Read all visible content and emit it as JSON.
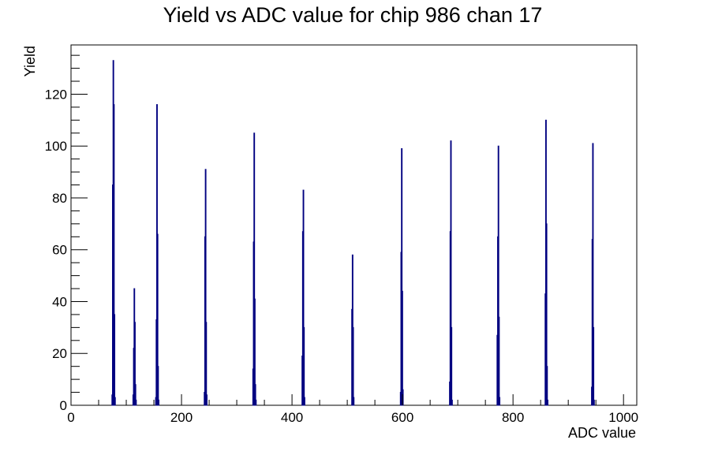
{
  "chart_data": {
    "type": "bar",
    "title": "Yield vs ADC value for chip 986 chan 17",
    "xlabel": "ADC value",
    "ylabel": "Yield",
    "xlim": [
      0,
      1024
    ],
    "ylim": [
      0,
      139
    ],
    "x_ticks": [
      0,
      200,
      400,
      600,
      800,
      1000
    ],
    "y_ticks": [
      0,
      20,
      40,
      60,
      80,
      100,
      120
    ],
    "grid": false,
    "legend": "none",
    "color": "#000080",
    "series": [
      {
        "values": [
          [
            74,
            4
          ],
          [
            75,
            85
          ],
          [
            76,
            133
          ],
          [
            77,
            116
          ],
          [
            78,
            35
          ],
          [
            79,
            3
          ],
          [
            112,
            4
          ],
          [
            113,
            22
          ],
          [
            114,
            45
          ],
          [
            115,
            32
          ],
          [
            116,
            8
          ],
          [
            117,
            2
          ],
          [
            153,
            3
          ],
          [
            154,
            33
          ],
          [
            155,
            116
          ],
          [
            156,
            66
          ],
          [
            157,
            15
          ],
          [
            158,
            2
          ],
          [
            241,
            5
          ],
          [
            242,
            65
          ],
          [
            243,
            91
          ],
          [
            244,
            32
          ],
          [
            245,
            4
          ],
          [
            329,
            14
          ],
          [
            330,
            63
          ],
          [
            331,
            105
          ],
          [
            332,
            41
          ],
          [
            333,
            8
          ],
          [
            334,
            2
          ],
          [
            418,
            19
          ],
          [
            419,
            67
          ],
          [
            420,
            83
          ],
          [
            421,
            30
          ],
          [
            422,
            3
          ],
          [
            508,
            37
          ],
          [
            509,
            58
          ],
          [
            510,
            30
          ],
          [
            511,
            3
          ],
          [
            596,
            5
          ],
          [
            597,
            59
          ],
          [
            598,
            99
          ],
          [
            599,
            44
          ],
          [
            600,
            6
          ],
          [
            685,
            9
          ],
          [
            686,
            67
          ],
          [
            687,
            102
          ],
          [
            688,
            30
          ],
          [
            689,
            2
          ],
          [
            771,
            27
          ],
          [
            772,
            65
          ],
          [
            773,
            100
          ],
          [
            774,
            34
          ],
          [
            775,
            3
          ],
          [
            858,
            43
          ],
          [
            859,
            110
          ],
          [
            860,
            70
          ],
          [
            861,
            15
          ],
          [
            862,
            2
          ],
          [
            942,
            7
          ],
          [
            943,
            64
          ],
          [
            944,
            101
          ],
          [
            945,
            30
          ],
          [
            946,
            2
          ]
        ]
      }
    ]
  }
}
